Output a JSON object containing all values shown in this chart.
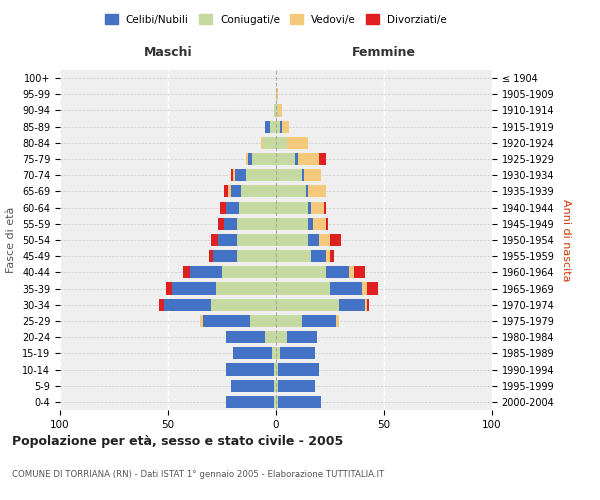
{
  "age_groups": [
    "0-4",
    "5-9",
    "10-14",
    "15-19",
    "20-24",
    "25-29",
    "30-34",
    "35-39",
    "40-44",
    "45-49",
    "50-54",
    "55-59",
    "60-64",
    "65-69",
    "70-74",
    "75-79",
    "80-84",
    "85-89",
    "90-94",
    "95-99",
    "100+"
  ],
  "birth_years": [
    "2000-2004",
    "1995-1999",
    "1990-1994",
    "1985-1989",
    "1980-1984",
    "1975-1979",
    "1970-1974",
    "1965-1969",
    "1960-1964",
    "1955-1959",
    "1950-1954",
    "1945-1949",
    "1940-1944",
    "1935-1939",
    "1930-1934",
    "1925-1929",
    "1920-1924",
    "1915-1919",
    "1910-1914",
    "1905-1909",
    "≤ 1904"
  ],
  "males": {
    "coniugato": [
      1,
      1,
      1,
      2,
      5,
      12,
      30,
      28,
      25,
      18,
      18,
      18,
      17,
      16,
      14,
      11,
      6,
      3,
      1,
      0,
      0
    ],
    "celibe": [
      22,
      20,
      22,
      18,
      18,
      22,
      22,
      20,
      15,
      11,
      9,
      6,
      6,
      5,
      5,
      2,
      0,
      2,
      0,
      0,
      0
    ],
    "vedovo": [
      0,
      0,
      0,
      0,
      0,
      1,
      0,
      0,
      0,
      0,
      0,
      0,
      0,
      1,
      1,
      1,
      1,
      0,
      0,
      0,
      0
    ],
    "divorziato": [
      0,
      0,
      0,
      0,
      0,
      0,
      2,
      3,
      3,
      2,
      3,
      3,
      3,
      2,
      1,
      0,
      0,
      0,
      0,
      0,
      0
    ]
  },
  "females": {
    "coniugato": [
      1,
      1,
      1,
      2,
      5,
      12,
      29,
      25,
      23,
      16,
      15,
      15,
      15,
      14,
      12,
      9,
      5,
      2,
      1,
      0,
      0
    ],
    "celibe": [
      20,
      17,
      19,
      16,
      14,
      16,
      12,
      15,
      11,
      7,
      5,
      2,
      1,
      1,
      1,
      1,
      0,
      1,
      0,
      0,
      0
    ],
    "vedovo": [
      0,
      0,
      0,
      0,
      0,
      1,
      1,
      2,
      2,
      2,
      5,
      6,
      6,
      8,
      8,
      10,
      10,
      3,
      2,
      1,
      0
    ],
    "divorziato": [
      0,
      0,
      0,
      0,
      0,
      0,
      1,
      5,
      5,
      2,
      5,
      1,
      1,
      0,
      0,
      3,
      0,
      0,
      0,
      0,
      0
    ]
  },
  "colors": {
    "celibe": "#4472c4",
    "coniugato": "#c5d9a0",
    "vedovo": "#f5c97a",
    "divorziato": "#e02020"
  },
  "xlim": 100,
  "title": "Popolazione per età, sesso e stato civile - 2005",
  "subtitle": "COMUNE DI TORRIANA (RN) - Dati ISTAT 1° gennaio 2005 - Elaborazione TUTTITALIA.IT",
  "xlabel_left": "Maschi",
  "xlabel_right": "Femmine",
  "ylabel_left": "Fasce di età",
  "ylabel_right": "Anni di nascita",
  "legend_labels": [
    "Celibi/Nubili",
    "Coniugati/e",
    "Vedovi/e",
    "Divorziati/e"
  ],
  "bg_color": "#efefef",
  "bar_height": 0.75
}
